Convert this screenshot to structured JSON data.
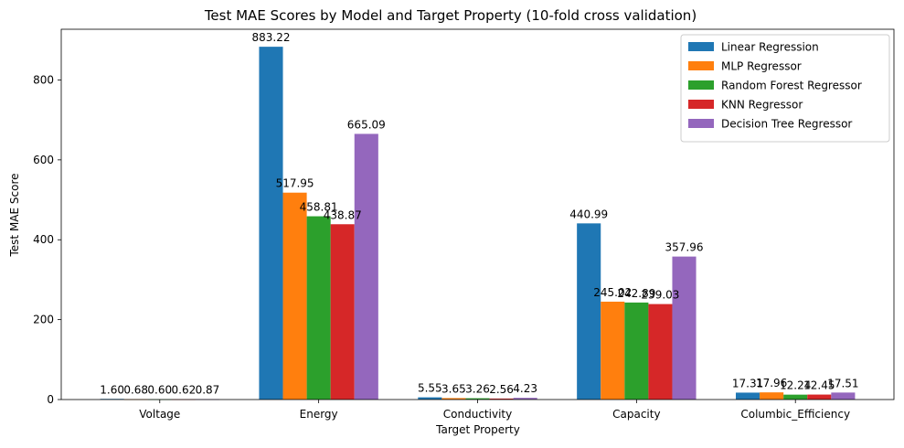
{
  "chart_data": {
    "type": "bar",
    "title": "Test MAE Scores by Model and Target Property (10-fold cross validation)",
    "xlabel": "Target Property",
    "ylabel": "Test MAE Score",
    "categories": [
      "Voltage",
      "Energy",
      "Conductivity",
      "Capacity",
      "Columbic_Efficiency"
    ],
    "ylim": [
      0,
      927
    ],
    "yticks": [
      0,
      200,
      400,
      600,
      800
    ],
    "legend_position": "top-right",
    "grid": false,
    "series": [
      {
        "name": "Linear Regression",
        "color": "#1f77b4",
        "values": [
          1.6,
          883.22,
          5.55,
          440.99,
          17.31
        ],
        "labels": [
          "1.60",
          "883.22",
          "5.55",
          "440.99",
          "17.31"
        ]
      },
      {
        "name": "MLP Regressor",
        "color": "#ff7f0e",
        "values": [
          0.68,
          517.95,
          3.65,
          245.02,
          17.96
        ],
        "labels": [
          "0.68",
          "517.95",
          "3.65",
          "245.02",
          "17.96"
        ]
      },
      {
        "name": "Random Forest Regressor",
        "color": "#2ca02c",
        "values": [
          0.6,
          458.81,
          3.26,
          242.89,
          12.24
        ],
        "labels": [
          "0.60",
          "458.81",
          "3.26",
          "242.89",
          "12.24"
        ]
      },
      {
        "name": "KNN Regressor",
        "color": "#d62728",
        "values": [
          0.62,
          438.87,
          2.56,
          239.03,
          12.45
        ],
        "labels": [
          "0.62",
          "438.87",
          "2.56",
          "239.03",
          "12.45"
        ]
      },
      {
        "name": "Decision Tree Regressor",
        "color": "#9467bd",
        "values": [
          0.87,
          665.09,
          4.23,
          357.96,
          17.51
        ],
        "labels": [
          "0.87",
          "665.09",
          "4.23",
          "357.96",
          "17.51"
        ]
      }
    ]
  }
}
